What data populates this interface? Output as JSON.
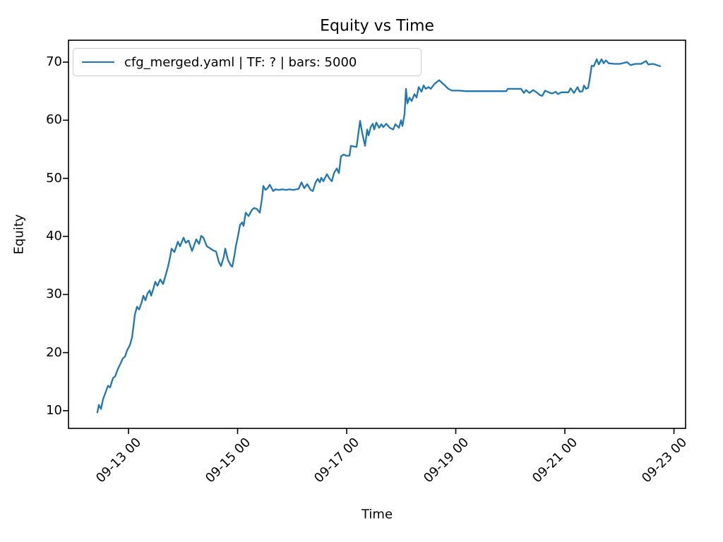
{
  "title": "Equity vs Time",
  "legend": {
    "label": "cfg_merged.yaml | TF: ? | bars: 5000",
    "position": "upper left"
  },
  "colors": {
    "line": "#1f77b4",
    "legend_border": "#cccccc",
    "spine": "#000000",
    "background": "#ffffff"
  },
  "chart_data": {
    "type": "line",
    "title": "Equity vs Time",
    "xlabel": "Time",
    "ylabel": "Equity",
    "grid": false,
    "legend_position": "upper left",
    "x_unit": "day of month (September), decimal days",
    "x_range_days": [
      11.9,
      23.213
    ],
    "ylim": [
      6.96,
      73.77
    ],
    "y_ticks": [
      10,
      20,
      30,
      40,
      50,
      60,
      70
    ],
    "x_ticks": [
      {
        "day": 13,
        "label": "09-13 00"
      },
      {
        "day": 15,
        "label": "09-15 00"
      },
      {
        "day": 17,
        "label": "09-17 00"
      },
      {
        "day": 19,
        "label": "09-19 00"
      },
      {
        "day": 21,
        "label": "09-21 00"
      },
      {
        "day": 23,
        "label": "09-23 00"
      }
    ],
    "series": [
      {
        "name": "cfg_merged.yaml | TF: ? | bars: 5000",
        "color": "#1f77b4",
        "points": [
          [
            12.43,
            9.7
          ],
          [
            12.456,
            11.0
          ],
          [
            12.495,
            10.3
          ],
          [
            12.534,
            12.0
          ],
          [
            12.586,
            13.3
          ],
          [
            12.625,
            14.3
          ],
          [
            12.663,
            14.0
          ],
          [
            12.715,
            15.6
          ],
          [
            12.754,
            15.9
          ],
          [
            12.806,
            17.2
          ],
          [
            12.858,
            18.2
          ],
          [
            12.896,
            19.0
          ],
          [
            12.935,
            19.3
          ],
          [
            12.974,
            20.4
          ],
          [
            13.026,
            21.3
          ],
          [
            13.065,
            22.6
          ],
          [
            13.091,
            24.5
          ],
          [
            13.117,
            26.5
          ],
          [
            13.155,
            27.9
          ],
          [
            13.194,
            27.4
          ],
          [
            13.246,
            28.8
          ],
          [
            13.272,
            29.8
          ],
          [
            13.311,
            29.0
          ],
          [
            13.35,
            30.2
          ],
          [
            13.388,
            30.7
          ],
          [
            13.414,
            29.8
          ],
          [
            13.453,
            30.9
          ],
          [
            13.492,
            32.2
          ],
          [
            13.531,
            31.5
          ],
          [
            13.583,
            32.6
          ],
          [
            13.634,
            31.8
          ],
          [
            13.686,
            33.5
          ],
          [
            13.725,
            34.8
          ],
          [
            13.764,
            36.5
          ],
          [
            13.79,
            37.9
          ],
          [
            13.841,
            37.3
          ],
          [
            13.906,
            39.1
          ],
          [
            13.945,
            38.3
          ],
          [
            14.01,
            39.8
          ],
          [
            14.049,
            38.9
          ],
          [
            14.1,
            39.3
          ],
          [
            14.165,
            37.5
          ],
          [
            14.243,
            39.5
          ],
          [
            14.294,
            38.7
          ],
          [
            14.333,
            40.1
          ],
          [
            14.372,
            39.8
          ],
          [
            14.437,
            38.3
          ],
          [
            14.489,
            38.0
          ],
          [
            14.553,
            37.6
          ],
          [
            14.605,
            37.4
          ],
          [
            14.657,
            35.6
          ],
          [
            14.696,
            34.9
          ],
          [
            14.748,
            36.5
          ],
          [
            14.773,
            37.9
          ],
          [
            14.825,
            35.9
          ],
          [
            14.877,
            35.0
          ],
          [
            14.903,
            34.8
          ],
          [
            14.942,
            36.7
          ],
          [
            14.968,
            38.3
          ],
          [
            15.006,
            40.0
          ],
          [
            15.045,
            42.0
          ],
          [
            15.084,
            42.4
          ],
          [
            15.11,
            41.8
          ],
          [
            15.149,
            44.1
          ],
          [
            15.201,
            43.5
          ],
          [
            15.265,
            44.6
          ],
          [
            15.304,
            44.9
          ],
          [
            15.356,
            44.7
          ],
          [
            15.408,
            44.1
          ],
          [
            15.447,
            46.5
          ],
          [
            15.472,
            48.7
          ],
          [
            15.511,
            48.0
          ],
          [
            15.55,
            48.3
          ],
          [
            15.589,
            48.9
          ],
          [
            15.654,
            47.8
          ],
          [
            15.693,
            48.1
          ],
          [
            15.757,
            48.0
          ],
          [
            15.822,
            48.1
          ],
          [
            15.887,
            48.0
          ],
          [
            15.951,
            48.1
          ],
          [
            16.016,
            48.0
          ],
          [
            16.081,
            48.1
          ],
          [
            16.12,
            48.2
          ],
          [
            16.172,
            49.3
          ],
          [
            16.223,
            48.3
          ],
          [
            16.275,
            49.0
          ],
          [
            16.34,
            48.0
          ],
          [
            16.379,
            47.8
          ],
          [
            16.43,
            49.3
          ],
          [
            16.469,
            49.9
          ],
          [
            16.508,
            49.3
          ],
          [
            16.534,
            50.1
          ],
          [
            16.573,
            49.5
          ],
          [
            16.638,
            50.7
          ],
          [
            16.689,
            49.9
          ],
          [
            16.728,
            49.5
          ],
          [
            16.767,
            50.9
          ],
          [
            16.819,
            51.7
          ],
          [
            16.858,
            50.9
          ],
          [
            16.897,
            53.8
          ],
          [
            16.948,
            54.1
          ],
          [
            16.987,
            53.9
          ],
          [
            17.052,
            53.9
          ],
          [
            17.078,
            55.6
          ],
          [
            17.117,
            55.5
          ],
          [
            17.181,
            55.4
          ],
          [
            17.246,
            59.9
          ],
          [
            17.285,
            57.8
          ],
          [
            17.337,
            55.6
          ],
          [
            17.375,
            58.4
          ],
          [
            17.401,
            57.4
          ],
          [
            17.44,
            58.8
          ],
          [
            17.479,
            59.4
          ],
          [
            17.505,
            58.4
          ],
          [
            17.544,
            59.6
          ],
          [
            17.595,
            58.7
          ],
          [
            17.634,
            59.3
          ],
          [
            17.673,
            58.8
          ],
          [
            17.725,
            59.4
          ],
          [
            17.79,
            58.7
          ],
          [
            17.854,
            58.4
          ],
          [
            17.893,
            59.3
          ],
          [
            17.958,
            58.7
          ],
          [
            17.997,
            60.0
          ],
          [
            18.023,
            59.0
          ],
          [
            18.061,
            61.1
          ],
          [
            18.087,
            65.4
          ],
          [
            18.113,
            62.9
          ],
          [
            18.152,
            63.9
          ],
          [
            18.191,
            63.3
          ],
          [
            18.243,
            64.5
          ],
          [
            18.282,
            63.9
          ],
          [
            18.32,
            65.7
          ],
          [
            18.372,
            64.9
          ],
          [
            18.411,
            66.0
          ],
          [
            18.45,
            65.4
          ],
          [
            18.502,
            65.7
          ],
          [
            18.54,
            65.4
          ],
          [
            18.605,
            66.2
          ],
          [
            18.644,
            66.5
          ],
          [
            18.696,
            66.9
          ],
          [
            18.761,
            66.3
          ],
          [
            18.799,
            66.0
          ],
          [
            18.864,
            65.4
          ],
          [
            18.929,
            65.1
          ],
          [
            19.058,
            65.1
          ],
          [
            19.188,
            65.0
          ],
          [
            19.317,
            65.0
          ],
          [
            19.447,
            65.0
          ],
          [
            19.576,
            65.0
          ],
          [
            19.706,
            65.0
          ],
          [
            19.835,
            65.0
          ],
          [
            19.926,
            65.0
          ],
          [
            19.951,
            65.4
          ],
          [
            20.094,
            65.4
          ],
          [
            20.197,
            65.4
          ],
          [
            20.249,
            64.7
          ],
          [
            20.288,
            65.2
          ],
          [
            20.352,
            64.7
          ],
          [
            20.417,
            65.2
          ],
          [
            20.482,
            64.8
          ],
          [
            20.546,
            64.3
          ],
          [
            20.585,
            64.2
          ],
          [
            20.637,
            65.1
          ],
          [
            20.702,
            64.8
          ],
          [
            20.767,
            64.6
          ],
          [
            20.832,
            64.9
          ],
          [
            20.87,
            64.5
          ],
          [
            20.935,
            64.8
          ],
          [
            21.0,
            64.8
          ],
          [
            21.065,
            64.8
          ],
          [
            21.104,
            65.5
          ],
          [
            21.168,
            64.7
          ],
          [
            21.233,
            65.7
          ],
          [
            21.272,
            64.9
          ],
          [
            21.324,
            65.0
          ],
          [
            21.35,
            66.0
          ],
          [
            21.388,
            65.4
          ],
          [
            21.427,
            65.6
          ],
          [
            21.453,
            66.9
          ],
          [
            21.492,
            69.4
          ],
          [
            21.531,
            69.3
          ],
          [
            21.583,
            70.5
          ],
          [
            21.621,
            69.6
          ],
          [
            21.673,
            70.5
          ],
          [
            21.712,
            69.8
          ],
          [
            21.751,
            70.3
          ],
          [
            21.803,
            69.8
          ],
          [
            21.906,
            69.7
          ],
          [
            22.01,
            69.7
          ],
          [
            22.139,
            70.0
          ],
          [
            22.204,
            69.5
          ],
          [
            22.294,
            69.7
          ],
          [
            22.398,
            69.7
          ],
          [
            22.489,
            70.2
          ],
          [
            22.528,
            69.6
          ],
          [
            22.618,
            69.7
          ],
          [
            22.683,
            69.5
          ],
          [
            22.748,
            69.3
          ]
        ]
      }
    ]
  }
}
